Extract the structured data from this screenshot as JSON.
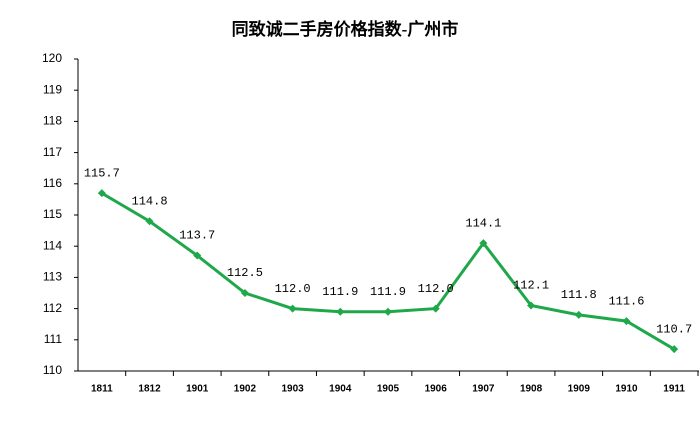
{
  "chart_data": {
    "type": "line",
    "title": "同致诚二手房价格指数-广州市",
    "categories": [
      "1811",
      "1812",
      "1901",
      "1902",
      "1903",
      "1904",
      "1905",
      "1906",
      "1907",
      "1908",
      "1909",
      "1910",
      "1911"
    ],
    "series": [
      {
        "color": "#1fa84a",
        "values": [
          115.7,
          114.8,
          113.7,
          112.5,
          112.0,
          111.9,
          111.9,
          112.0,
          114.1,
          112.1,
          111.8,
          111.6,
          110.7
        ],
        "value_labels": [
          "115.7",
          "114.8",
          "113.7",
          "112.5",
          "112.0",
          "111.9",
          "111.9",
          "112.0",
          "114.1",
          "112.1",
          "111.8",
          "111.6",
          "110.7"
        ]
      }
    ],
    "ylim": [
      110,
      120
    ],
    "yticks": [
      110,
      111,
      112,
      113,
      114,
      115,
      116,
      117,
      118,
      119,
      120
    ],
    "grid": false
  }
}
